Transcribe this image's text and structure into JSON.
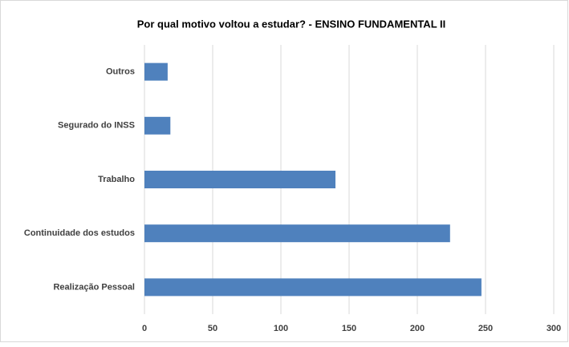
{
  "chart_data": {
    "type": "bar",
    "orientation": "horizontal",
    "title": "Por qual motivo voltou a estudar? - ENSINO FUNDAMENTAL II",
    "categories": [
      "Outros",
      "Segurado do INSS",
      "Trabalho",
      "Continuidade dos estudos",
      "Realização Pessoal"
    ],
    "values": [
      17,
      19,
      140,
      224,
      247
    ],
    "color": "#4f81bd",
    "xlim": [
      0,
      300
    ],
    "xticks": [
      0,
      50,
      100,
      150,
      200,
      250,
      300
    ],
    "grid": true
  }
}
